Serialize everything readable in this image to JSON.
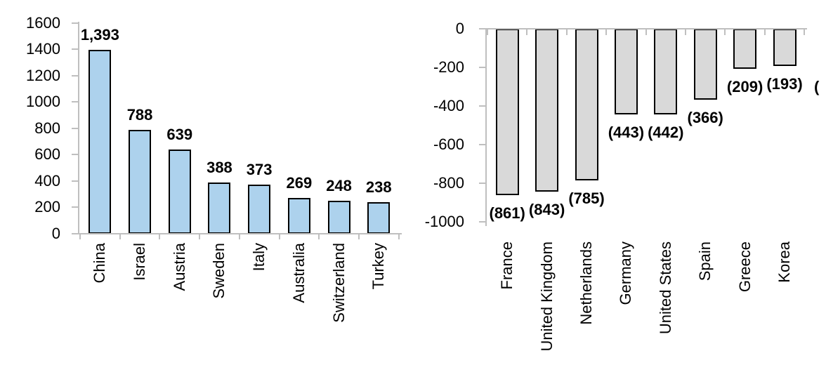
{
  "figure": {
    "background": "#ffffff",
    "axis_color": "#BFBFBF",
    "text_color": "#000000"
  },
  "chart_data": [
    {
      "type": "bar",
      "title": "",
      "xlabel": "",
      "ylabel": "",
      "grid": false,
      "legend": false,
      "categories": [
        "China",
        "Israel",
        "Austria",
        "Sweden",
        "Italy",
        "Australia",
        "Switzerland",
        "Turkey"
      ],
      "values": [
        1393,
        788,
        639,
        388,
        373,
        269,
        248,
        238
      ],
      "data_labels": [
        "1,393",
        "788",
        "639",
        "388",
        "373",
        "269",
        "248",
        "238"
      ],
      "ylim": [
        0,
        1600
      ],
      "ytick_values": [
        1600,
        1400,
        1200,
        1000,
        800,
        600,
        400,
        200,
        0
      ],
      "ytick_labels": [
        "1600",
        "1400",
        "1200",
        "1000",
        "800",
        "600",
        "400",
        "200",
        "0"
      ],
      "bar_fill": "#ADD2ED",
      "bar_border": "#000000"
    },
    {
      "type": "bar",
      "title": "",
      "xlabel": "",
      "ylabel": "",
      "grid": false,
      "legend": false,
      "categories": [
        "France",
        "United Kingdom",
        "Netherlands",
        "Germany",
        "United States",
        "Spain",
        "Greece",
        "Korea"
      ],
      "values": [
        -861,
        -843,
        -785,
        -443,
        -442,
        -366,
        -209,
        -193
      ],
      "data_labels": [
        "(861)",
        "(843)",
        "(785)",
        "(443)",
        "(442)",
        "(366)",
        "(209)",
        "(193)"
      ],
      "ylim": [
        -1000,
        0
      ],
      "ytick_values": [
        0,
        -200,
        -400,
        -600,
        -800,
        -1000
      ],
      "ytick_labels": [
        "0",
        "-200",
        "-400",
        "-600",
        "-800",
        "-1000"
      ],
      "bar_fill": "#D9D9D9",
      "bar_border": "#000000",
      "clipped_partial_label": "("
    }
  ]
}
